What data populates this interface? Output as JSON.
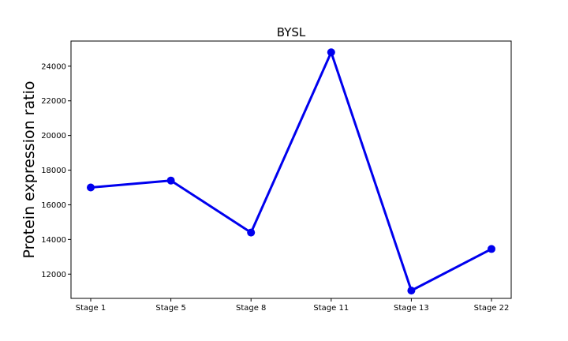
{
  "chart_data": {
    "type": "line",
    "title": "BYSL",
    "xlabel": "",
    "ylabel": "Protein expression ratio",
    "categories": [
      "Stage 1",
      "Stage 5",
      "Stage 8",
      "Stage 11",
      "Stage 13",
      "Stage 22"
    ],
    "series": [
      {
        "values": [
          17000,
          17400,
          14400,
          24800,
          11050,
          13450
        ]
      }
    ],
    "ylim": [
      10600,
      25450
    ],
    "yticks": [
      12000,
      14000,
      16000,
      18000,
      20000,
      22000,
      24000
    ],
    "grid": false,
    "color": "#0000ee"
  }
}
